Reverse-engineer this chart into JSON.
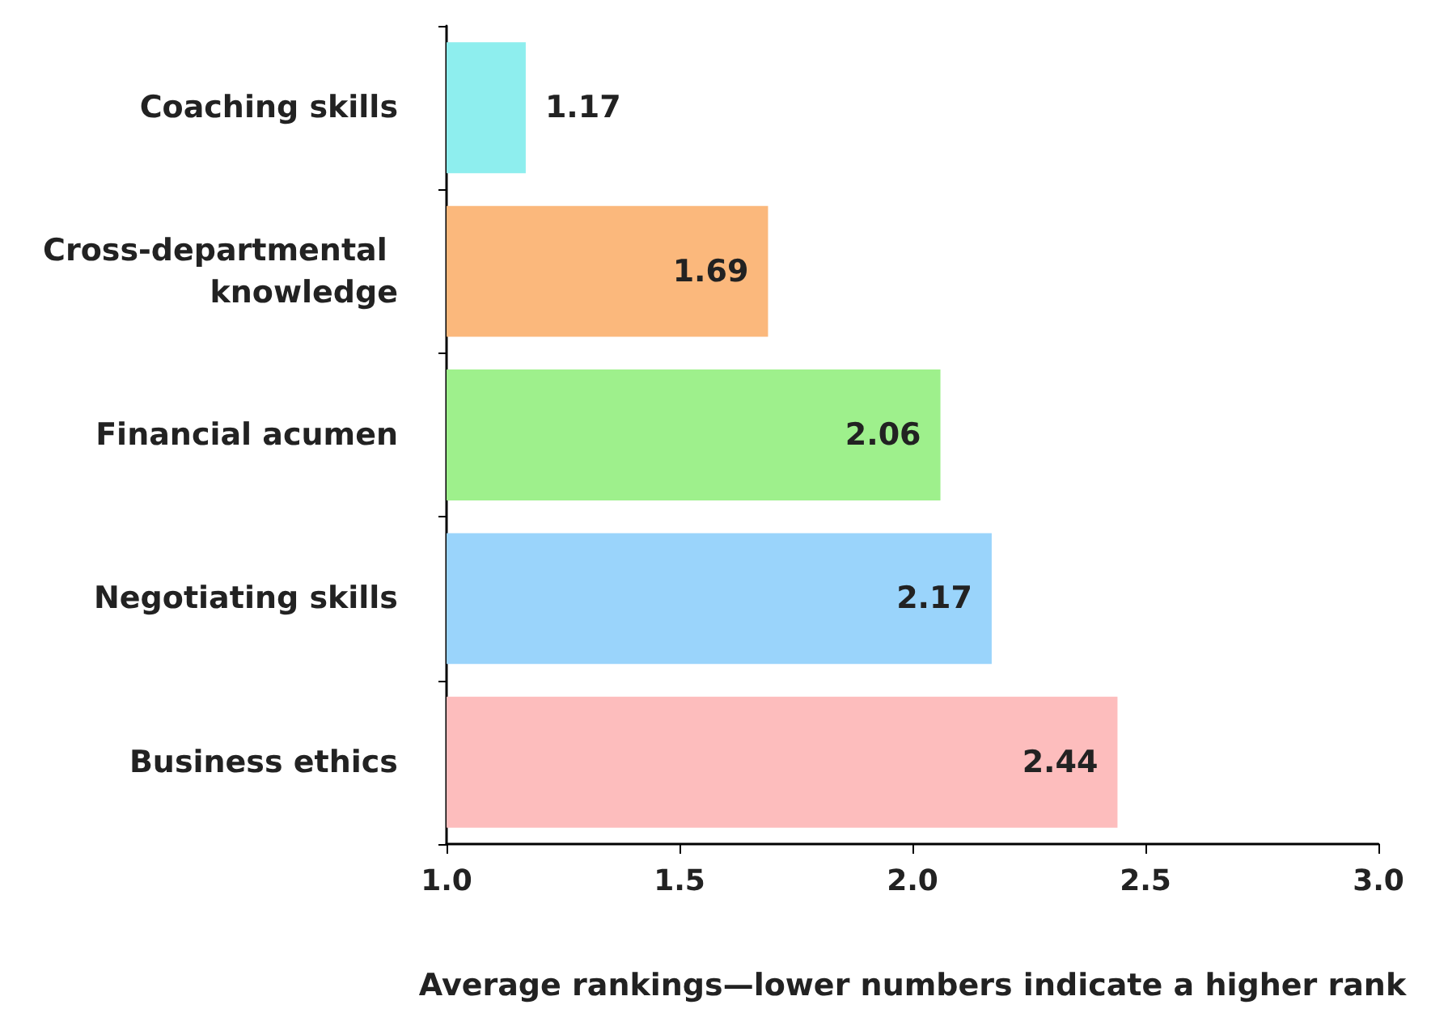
{
  "chart_data": {
    "type": "bar",
    "orientation": "horizontal",
    "xlabel": "Average rankings—lower numbers indicate a higher rank",
    "categories": [
      "Coaching skills",
      "Cross-departmental knowledge",
      "Financial acumen",
      "Negotiating skills",
      "Business ethics"
    ],
    "values": [
      1.17,
      1.69,
      2.06,
      2.17,
      2.44
    ],
    "colors": [
      "#8eeeee",
      "#fbb87c",
      "#9ef08c",
      "#9ad4fb",
      "#fdbdbd"
    ],
    "xlim": [
      1.0,
      3.0
    ],
    "xticks": [
      {
        "value": 1.0,
        "label": "1.0"
      },
      {
        "value": 1.5,
        "label": "1.5"
      },
      {
        "value": 2.0,
        "label": "2.0"
      },
      {
        "value": 2.5,
        "label": "2.5"
      },
      {
        "value": 3.0,
        "label": "3.0"
      }
    ],
    "data_labels": true
  }
}
